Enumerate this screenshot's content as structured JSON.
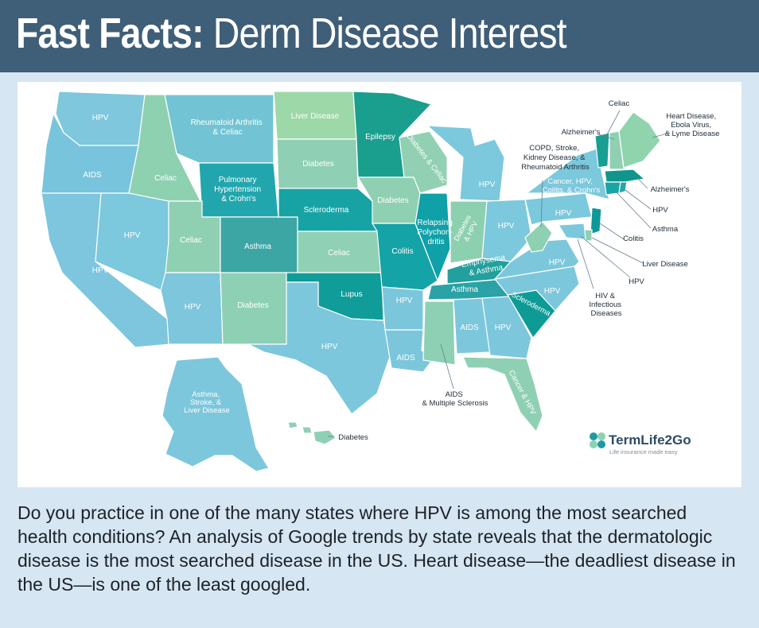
{
  "header": {
    "title_bold": "Fast Facts:",
    "title_rest": " Derm Disease Interest"
  },
  "colors": {
    "header_bg": "#3f5e78",
    "page_bg": "#d6e6f2",
    "hpv_blue": "#7bc8dc",
    "teal_dark": "#1e9a9a",
    "green_light": "#8ed0b2"
  },
  "map": {
    "states": {
      "wa": "HPV",
      "or": "AIDS",
      "ca": "HPV",
      "nv": "HPV",
      "id": "Celiac",
      "mt": [
        "Rheumatoid Arthritis",
        "& Celiac"
      ],
      "wy": [
        "Pulmonary",
        "Hypertension",
        "& Crohn's"
      ],
      "ut": "Celiac",
      "co": "Asthma",
      "az": "HPV",
      "nm": "Diabetes",
      "nd": "Liver Disease",
      "sd": "Diabetes",
      "ne": "Scleroderma",
      "ks": "Celiac",
      "ok": "Lupus",
      "tx": "HPV",
      "mn": "Epilepsy",
      "ia": "Diabetes",
      "mo": "Colitis",
      "ar": "HPV",
      "la": "AIDS",
      "wi": "Diabetes & Celiac",
      "il": [
        "Relapsing",
        "Polychon-",
        "dritis"
      ],
      "in": [
        "Diabetes",
        "& HPV"
      ],
      "mi": "HPV",
      "oh": "HPV",
      "ky": [
        "Emphysema",
        "& Asthma"
      ],
      "tn": "Asthma",
      "ms": "",
      "al": "AIDS",
      "ga": "HPV",
      "fl": "Cancer & HPV",
      "sc": "Scleroderma",
      "nc": "HPV",
      "va": "HPV",
      "pa": "HPV",
      "ny": [
        "Cancer, HPV,",
        "Colitis, & Crohn's"
      ],
      "ak": [
        "Asthma,",
        "Stroke, &",
        "Liver Disease"
      ]
    },
    "callouts": {
      "wv": [
        "COPD, Stroke,",
        "Kidney Disease, &",
        "Rheumatoid Arthritis"
      ],
      "vt": "Celiac",
      "nh": "Alzheimer's",
      "me": [
        "Heart Disease,",
        "Ebola Virus,",
        "& Lyme Disease"
      ],
      "ma": "Alzheimer's",
      "ri": "HPV",
      "ct": "Asthma",
      "nj": "Colitis",
      "de": "Liver Disease",
      "md": "HPV",
      "dc": [
        "HIV &",
        "Infectious",
        "Diseases"
      ],
      "ms": [
        "AIDS",
        "& Multiple Sclerosis"
      ],
      "hi": "Diabetes"
    },
    "brand": {
      "name": "TermLife2Go",
      "tagline": "Life insurance made easy"
    }
  },
  "caption": "Do you practice in one of the many states where HPV is among the most searched health conditions? An analysis of Google trends by state reveals that the dermatologic disease is the most searched disease in the US. Heart disease—the deadliest disease in the US—is one of the least googled."
}
